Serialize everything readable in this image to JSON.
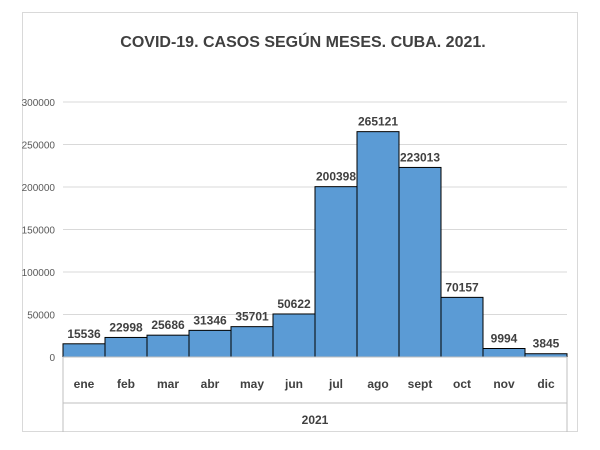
{
  "chart_data": {
    "type": "bar",
    "title": "COVID-19. CASOS SEGÚN MESES. CUBA. 2021.",
    "categories": [
      "ene",
      "feb",
      "mar",
      "abr",
      "may",
      "jun",
      "jul",
      "ago",
      "sept",
      "oct",
      "nov",
      "dic"
    ],
    "values": [
      15536,
      22998,
      25686,
      31346,
      35701,
      50622,
      200398,
      265121,
      223013,
      70157,
      9994,
      3845
    ],
    "data_labels": [
      "15536",
      "22998",
      "25686",
      "31346",
      "35701",
      "50622",
      "200398",
      "265121",
      "223013",
      "70157",
      "9994",
      "3845"
    ],
    "group_label": "2021",
    "ylim": [
      0,
      300000
    ],
    "yticks": [
      "0",
      "50000",
      "100000",
      "150000",
      "200000",
      "250000",
      "300000"
    ],
    "grid": true,
    "legend": "none",
    "colors": {
      "bar": "#5b9bd5",
      "bar_border": "#000000",
      "text": "#404040",
      "grid": "#d9d9d9"
    }
  }
}
